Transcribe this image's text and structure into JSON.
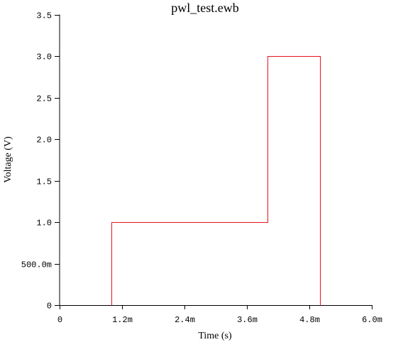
{
  "chart_data": {
    "type": "line",
    "title": "pwl_test.ewb",
    "xlabel": "Time (s)",
    "ylabel": "Voltage (V)",
    "xlim": [
      0,
      0.006
    ],
    "ylim": [
      0,
      3.5
    ],
    "x_ticks": [
      {
        "value": 0,
        "label": "0"
      },
      {
        "value": 0.0012,
        "label": "1.2m"
      },
      {
        "value": 0.0024,
        "label": "2.4m"
      },
      {
        "value": 0.0036,
        "label": "3.6m"
      },
      {
        "value": 0.0048,
        "label": "4.8m"
      },
      {
        "value": 0.006,
        "label": "6.0m"
      }
    ],
    "y_ticks": [
      {
        "value": 0,
        "label": "0"
      },
      {
        "value": 0.5,
        "label": "500.0m"
      },
      {
        "value": 1.0,
        "label": "1.0"
      },
      {
        "value": 1.5,
        "label": "1.5"
      },
      {
        "value": 2.0,
        "label": "2.0"
      },
      {
        "value": 2.5,
        "label": "2.5"
      },
      {
        "value": 3.0,
        "label": "3.0"
      },
      {
        "value": 3.5,
        "label": "3.5"
      }
    ],
    "grid": false,
    "series": [
      {
        "color": "#e8141c",
        "x": [
          0.001,
          0.001,
          0.004,
          0.004,
          0.005,
          0.005
        ],
        "y": [
          0,
          1.0,
          1.0,
          3.0,
          3.0,
          0
        ]
      }
    ]
  }
}
